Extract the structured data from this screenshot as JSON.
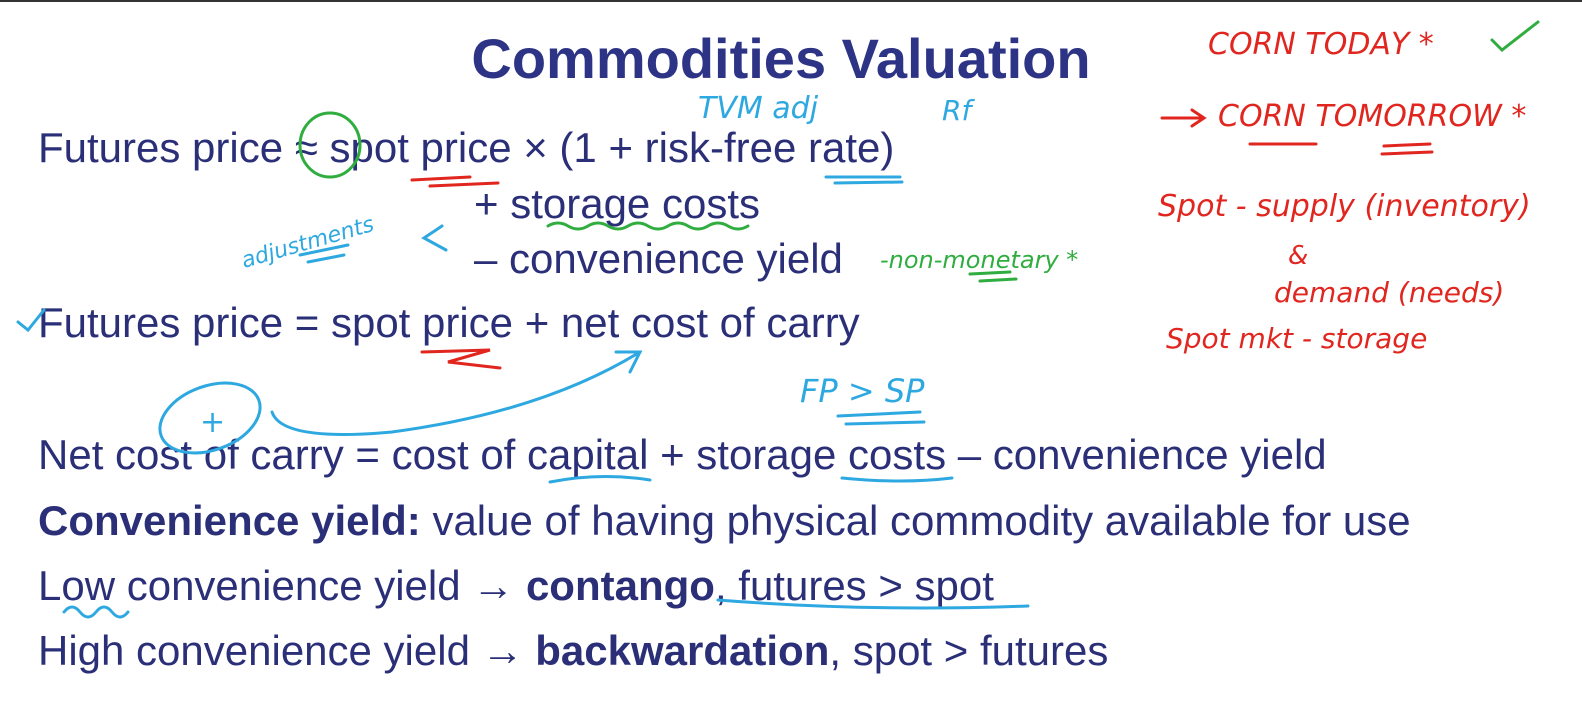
{
  "title": "Commodities Valuation",
  "lines": {
    "l1": "Futures price ≈ spot price × (1 + risk-free rate)",
    "l2": "+ storage costs",
    "l3": "– convenience yield",
    "l4": "Futures price = spot price + net cost of carry",
    "l5": "Net cost of carry = cost of capital + storage costs – convenience yield",
    "l6_bold": "Convenience yield:",
    "l6_rest": " value of having physical commodity available for use",
    "l7_a": "Low convenience yield → ",
    "l7_bold": "contango",
    "l7_b": ", futures > spot",
    "l8_a": "High convenience yield → ",
    "l8_bold": "backwardation",
    "l8_b": ", spot > futures"
  },
  "annotations": {
    "tvm": "TVM adj",
    "rf": "Rf",
    "adjustments": "adjustments",
    "non_monetary": "-non-monetary *",
    "plus": "+",
    "fp_sp": "FP > SP",
    "corn_today": "CORN TODAY *",
    "corn_tomorrow": "CORN TOMORROW *",
    "spot_supply": "Spot - supply (inventory)",
    "amp": "&",
    "demand": "demand (needs)",
    "spot_mkt": "Spot mkt - storage"
  },
  "colors": {
    "text": "#2a2f78",
    "ink_red": "#e0261f",
    "ink_green": "#2fad3f",
    "ink_blue": "#2ea8e0"
  }
}
